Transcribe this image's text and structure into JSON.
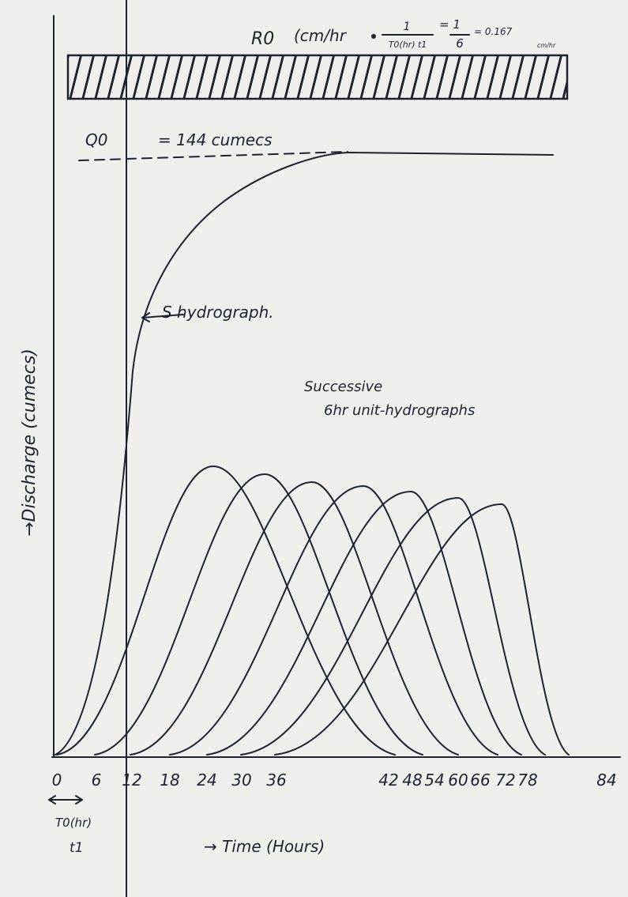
{
  "rainfall": {
    "symbol": "R0",
    "unit": "(cm/hr",
    "numerator": "1",
    "denominator": "T0(hr) t1",
    "equals_numerator": "= 1",
    "equals_denominator": "6",
    "result": "= 0.167",
    "result_unit": "cm/hr"
  },
  "equilibrium": {
    "symbol": "Q0",
    "value": "= 144 cumecs"
  },
  "curve_label": "S hydrograph.",
  "unit_hydrographs_label": [
    "Successive",
    "6hr unit-hydrographs"
  ],
  "y_axis_label": "→Discharge (cumecs)",
  "x_axis_label": "→ Time (Hours)",
  "x_tick_labels": [
    "0",
    "6",
    "12",
    "18",
    "24",
    "30",
    "36",
    "42",
    "48",
    "54",
    "60",
    "66",
    "72",
    "78",
    "84"
  ],
  "duration_label": [
    "T0(hr)",
    "t1"
  ]
}
